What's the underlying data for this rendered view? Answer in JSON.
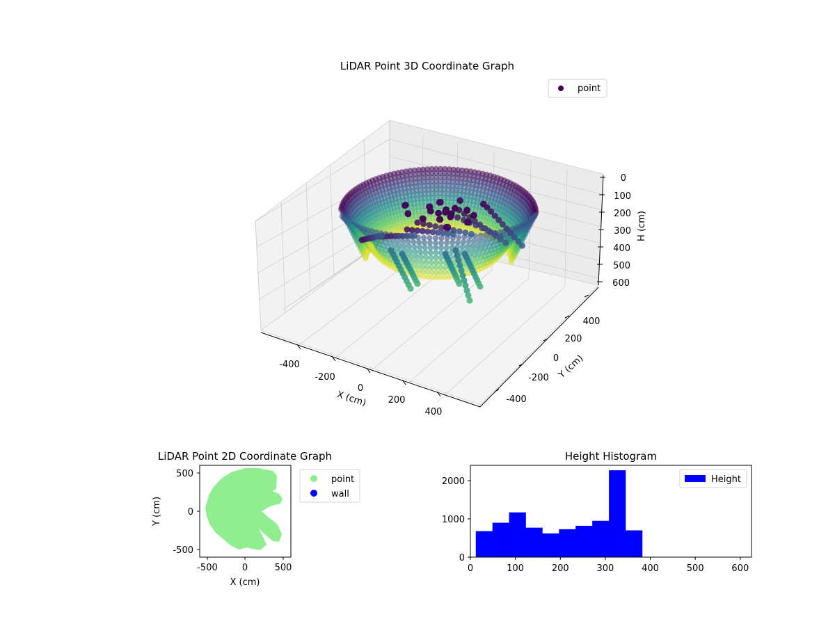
{
  "chart_data": [
    {
      "type": "scatter3d",
      "title": "LiDAR Point 3D Coordinate Graph",
      "xlabel": "X (cm)",
      "ylabel": "Y (cm)",
      "zlabel": "H (cm)",
      "x_ticks": [
        -400,
        -200,
        0,
        200,
        400
      ],
      "y_ticks": [
        -400,
        -200,
        0,
        200,
        400
      ],
      "z_ticks": [
        0,
        100,
        200,
        300,
        400,
        500,
        600
      ],
      "zlim": [
        0,
        600
      ],
      "legend": [
        "point"
      ],
      "legend_position": "upper-right",
      "colormap": [
        "#440154",
        "#3b528b",
        "#21908d",
        "#5dc963",
        "#fde725"
      ],
      "grid": true
    },
    {
      "type": "scatter",
      "title": "LiDAR Point 2D Coordinate Graph",
      "xlabel": "X (cm)",
      "ylabel": "Y (cm)",
      "x_ticks": [
        -500,
        0,
        500
      ],
      "y_ticks": [
        500,
        0,
        -500
      ],
      "xlim": [
        -600,
        600
      ],
      "ylim": [
        -600,
        600
      ],
      "series": [
        {
          "name": "point",
          "color": "#90ee90"
        },
        {
          "name": "wall",
          "color": "#0000ff"
        }
      ],
      "legend_position": "outside-right"
    },
    {
      "type": "bar",
      "title": "Height Histogram",
      "x_ticks": [
        0,
        100,
        200,
        300,
        400,
        500,
        600
      ],
      "y_ticks": [
        0,
        1000,
        2000
      ],
      "xlim": [
        0,
        625
      ],
      "ylim": [
        0,
        2400
      ],
      "bin_width": 37,
      "bin_starts": [
        12,
        49,
        86,
        123,
        160,
        197,
        234,
        271,
        308,
        345
      ],
      "values": [
        680,
        900,
        1170,
        770,
        620,
        730,
        820,
        950,
        2270,
        700
      ],
      "series_name": "Height",
      "color": "#0000ff",
      "legend_position": "upper-right"
    }
  ]
}
